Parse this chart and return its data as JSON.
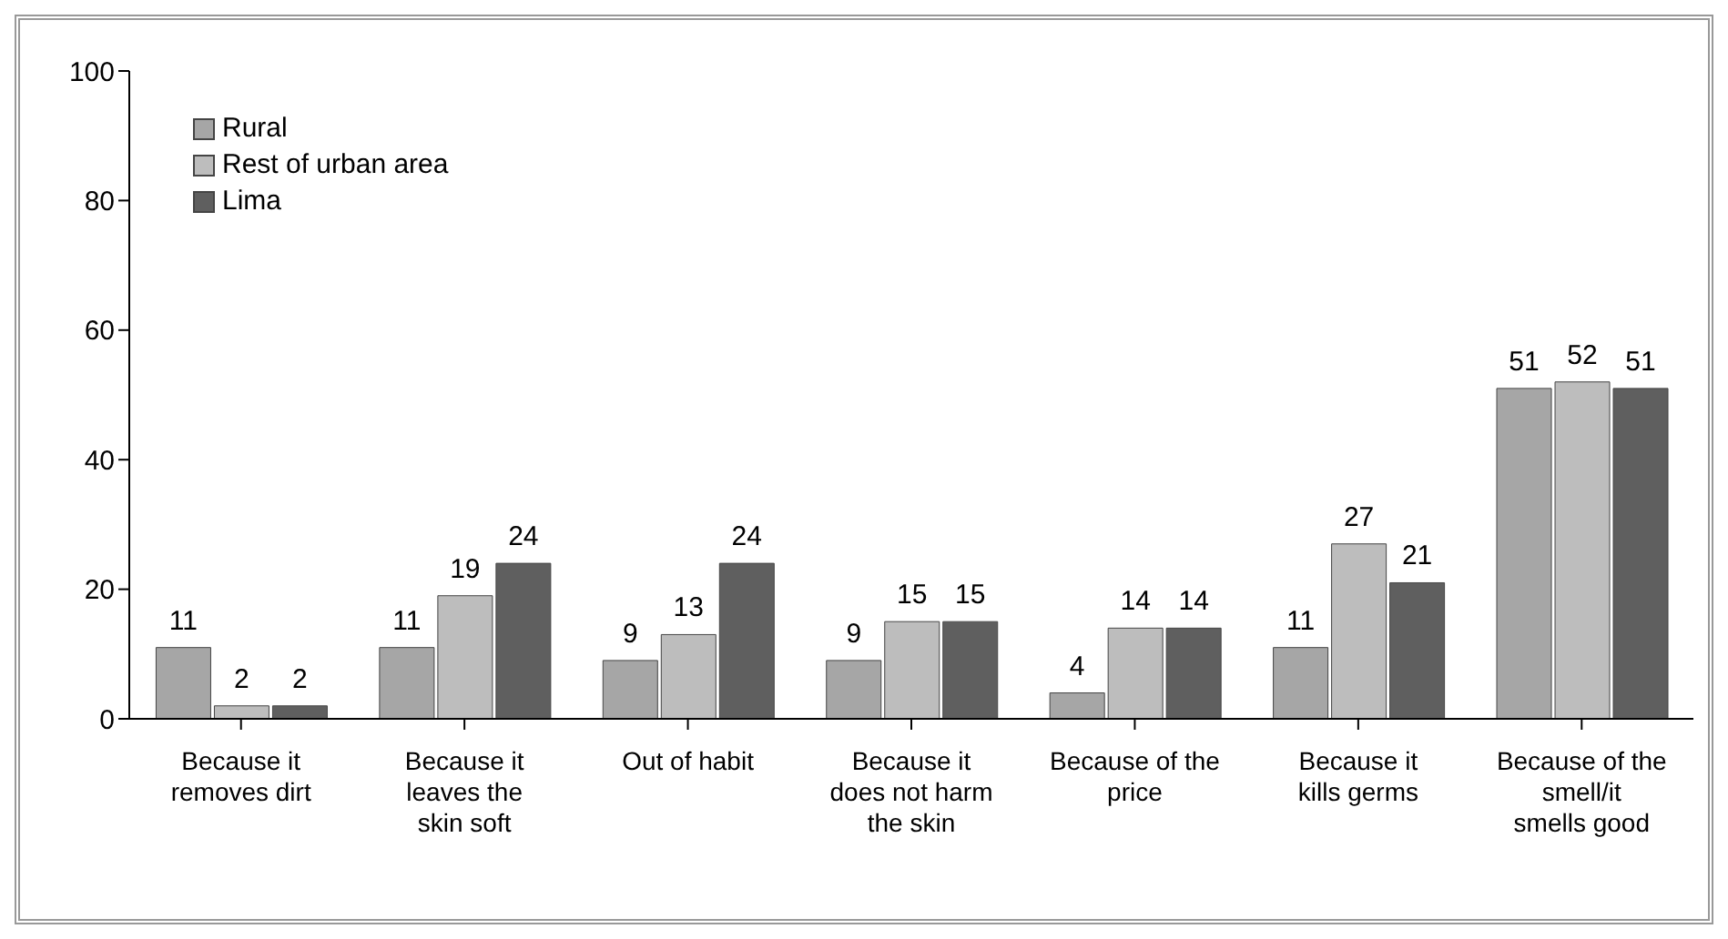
{
  "chart_data": {
    "type": "bar",
    "categories": [
      "Because it removes dirt",
      "Because it leaves the skin soft",
      "Out of habit",
      "Because it does not harm the skin",
      "Because of the price",
      "Because it kills germs",
      "Because of the smell/it smells good"
    ],
    "series": [
      {
        "name": "Rural",
        "color": "#a6a6a6",
        "values": [
          11,
          11,
          9,
          9,
          4,
          11,
          51
        ]
      },
      {
        "name": "Rest of urban area",
        "color": "#bdbdbd",
        "values": [
          2,
          19,
          13,
          15,
          14,
          27,
          52
        ]
      },
      {
        "name": "Lima",
        "color": "#5f5f5f",
        "values": [
          2,
          24,
          24,
          15,
          14,
          21,
          51
        ]
      }
    ],
    "ylim": [
      0,
      100
    ],
    "yticks": [
      0,
      20,
      40,
      60,
      80,
      100
    ],
    "grid": false,
    "legend": "top left",
    "data_labels": true
  }
}
